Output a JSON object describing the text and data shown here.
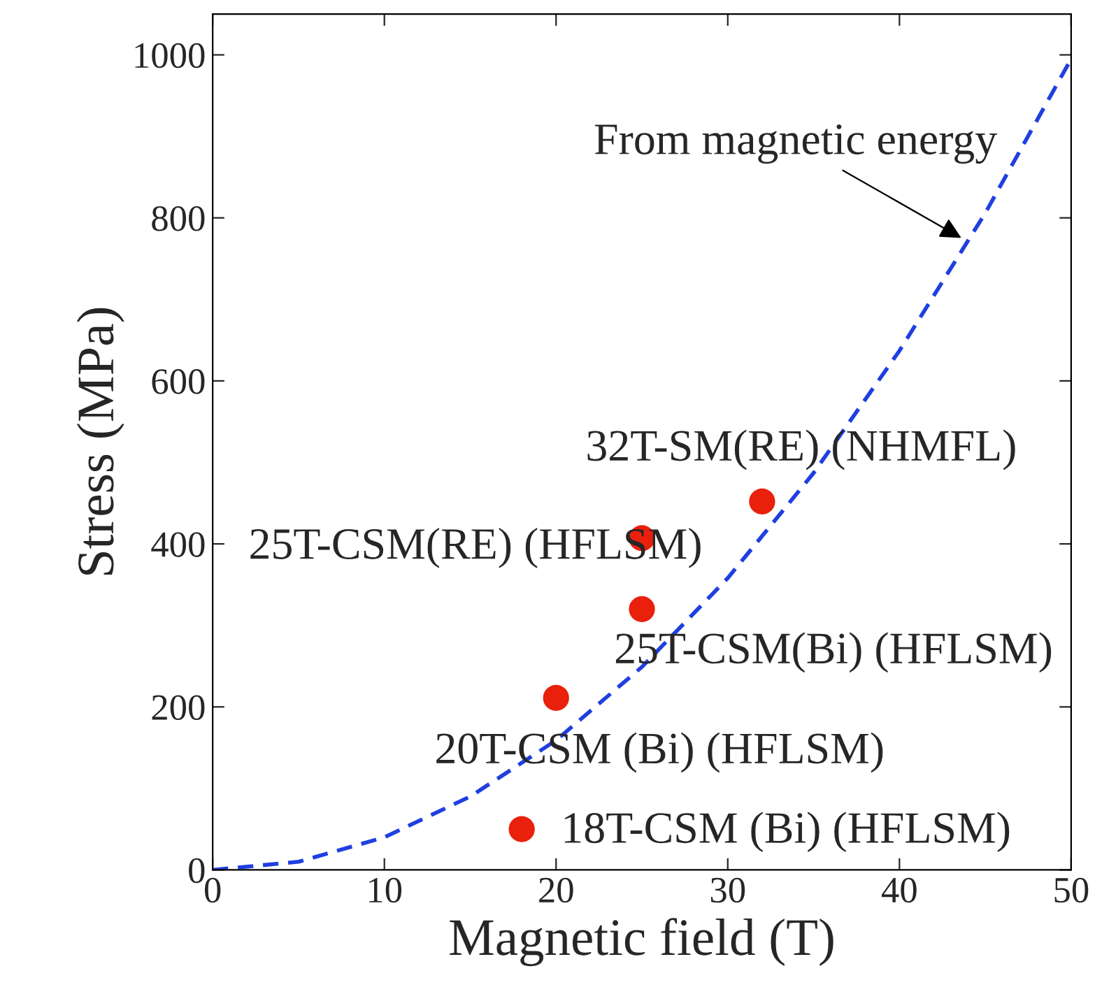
{
  "chart_data": {
    "type": "scatter",
    "xlabel": "Magnetic field (T)",
    "ylabel": "Stress (MPa)",
    "xlim": [
      0,
      50
    ],
    "ylim": [
      0,
      1050
    ],
    "xticks": [
      0,
      10,
      20,
      30,
      40,
      50
    ],
    "yticks": [
      0,
      200,
      400,
      600,
      800,
      1000
    ],
    "grid": false,
    "legend": false,
    "series": [
      {
        "color": "#e8200c",
        "marker": "circle",
        "x": [
          18,
          20,
          25,
          25,
          32
        ],
        "values": [
          50,
          211,
          320,
          407,
          452
        ]
      },
      {
        "type": "line",
        "color": "#1f3fe0",
        "line_style": "dashed",
        "marker": "none",
        "x": [
          0,
          5,
          10,
          15,
          20,
          25,
          30,
          35,
          40,
          45,
          50
        ],
        "values": [
          0,
          10,
          40,
          90,
          159,
          249,
          358,
          487,
          637,
          806,
          995
        ]
      }
    ],
    "annotations": [
      {
        "text": "32T-SM(RE) (NHMFL)",
        "x": 32,
        "y": 452
      },
      {
        "text": "25T-CSM(RE) (HFLSM)",
        "x": 25,
        "y": 407
      },
      {
        "text": "25T-CSM(Bi) (HFLSM)",
        "x": 25,
        "y": 320
      },
      {
        "text": "20T-CSM (Bi) (HFLSM)",
        "x": 20,
        "y": 211
      },
      {
        "text": "18T-CSM (Bi) (HFLSM)",
        "x": 18,
        "y": 50
      },
      {
        "text": "From magnetic energy",
        "x": 43.8,
        "y": 773
      }
    ]
  }
}
